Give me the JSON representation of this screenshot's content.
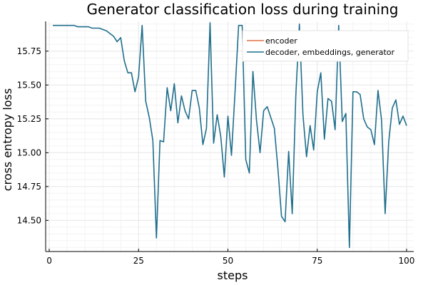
{
  "chart_data": {
    "type": "line",
    "title": "Generator classification loss during training",
    "xlabel": "steps",
    "ylabel": "cross entropy loss",
    "xlim": [
      -1,
      102
    ],
    "ylim": [
      14.27,
      15.97
    ],
    "xticks": [
      0,
      25,
      50,
      75,
      100
    ],
    "yticks": [
      14.5,
      14.75,
      15.0,
      15.25,
      15.5,
      15.75
    ],
    "xtick_labels": [
      "0",
      "25",
      "50",
      "75",
      "100"
    ],
    "ytick_labels": [
      "14.50",
      "14.75",
      "15.00",
      "15.25",
      "15.50",
      "15.75"
    ],
    "grid": true,
    "legend_position": "top-right",
    "series": [
      {
        "name": "encoder",
        "color": "#e26f46",
        "x": [],
        "y": []
      },
      {
        "name": "decoder, embeddings, generator",
        "color": "#1f6e8c",
        "x": [
          1,
          2,
          3,
          4,
          5,
          6,
          7,
          8,
          9,
          10,
          11,
          12,
          13,
          14,
          15,
          16,
          17,
          18,
          19,
          20,
          21,
          22,
          23,
          24,
          25,
          26,
          27,
          28,
          29,
          30,
          31,
          32,
          33,
          34,
          35,
          36,
          37,
          38,
          39,
          40,
          41,
          42,
          43,
          44,
          45,
          46,
          47,
          48,
          49,
          50,
          51,
          52,
          53,
          54,
          55,
          56,
          57,
          58,
          59,
          60,
          61,
          62,
          63,
          64,
          65,
          66,
          67,
          68,
          69,
          70,
          71,
          72,
          73,
          74,
          75,
          76,
          77,
          78,
          79,
          80,
          81,
          82,
          83,
          84,
          85,
          86,
          87,
          88,
          89,
          90,
          91,
          92,
          93,
          94,
          95,
          96,
          97,
          98,
          99,
          100
        ],
        "y": [
          15.94,
          15.94,
          15.94,
          15.94,
          15.94,
          15.94,
          15.94,
          15.93,
          15.93,
          15.93,
          15.93,
          15.92,
          15.92,
          15.92,
          15.91,
          15.9,
          15.88,
          15.86,
          15.82,
          15.85,
          15.68,
          15.59,
          15.59,
          15.45,
          15.56,
          15.94,
          15.38,
          15.26,
          15.09,
          14.37,
          15.09,
          15.08,
          15.48,
          15.31,
          15.51,
          15.22,
          15.42,
          15.31,
          15.25,
          15.46,
          15.46,
          15.33,
          15.06,
          15.18,
          15.96,
          15.07,
          15.28,
          15.12,
          14.82,
          15.27,
          14.98,
          15.45,
          15.94,
          15.94,
          14.95,
          14.85,
          15.6,
          15.24,
          15.0,
          15.31,
          15.34,
          15.26,
          15.18,
          14.88,
          14.53,
          14.49,
          15.01,
          14.55,
          15.42,
          15.95,
          15.28,
          14.97,
          15.2,
          15.02,
          15.45,
          15.59,
          15.1,
          15.4,
          15.38,
          15.17,
          15.94,
          15.23,
          15.29,
          14.3,
          15.45,
          15.45,
          15.43,
          15.25,
          15.19,
          15.17,
          15.06,
          15.46,
          15.24,
          14.55,
          15.08,
          15.33,
          15.39,
          15.21,
          15.27,
          15.2
        ]
      }
    ]
  }
}
